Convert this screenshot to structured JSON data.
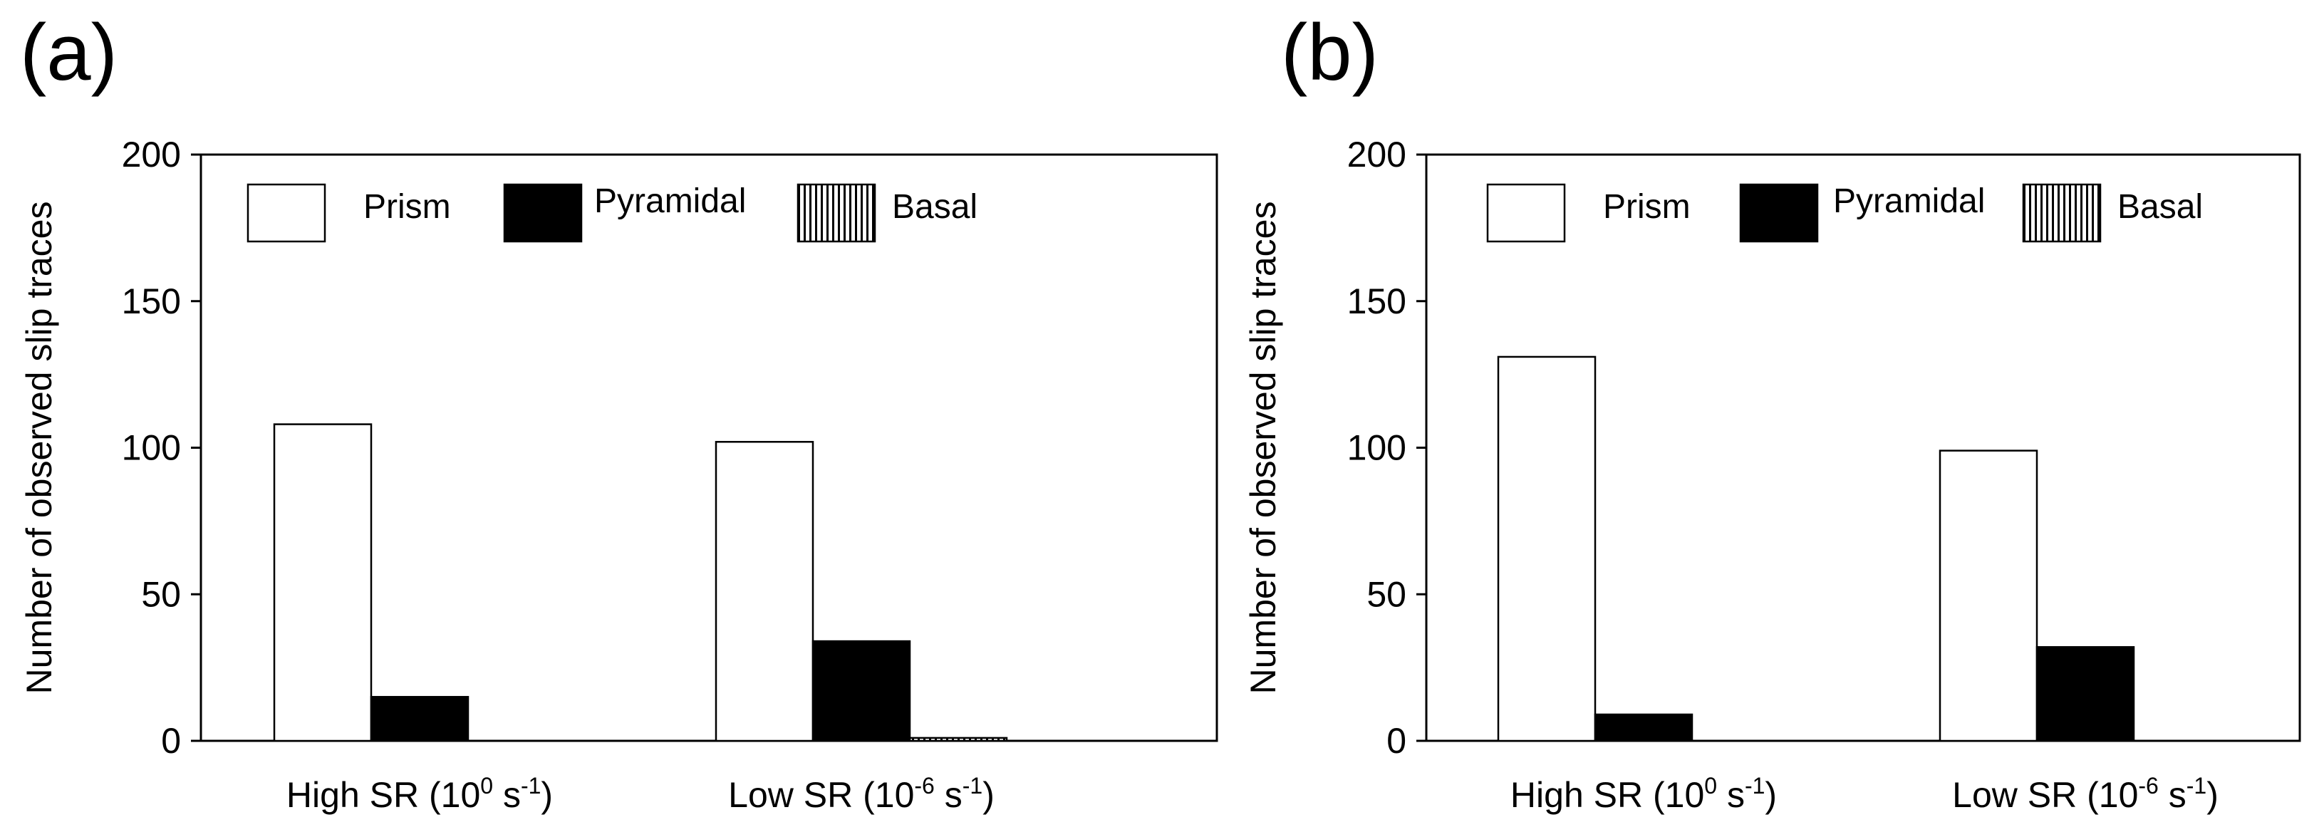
{
  "colors": {
    "axis": "#000000",
    "prism_fill": "#ffffff",
    "pyramidal_fill": "#000000",
    "basal_stripe": "#000000",
    "background": "#ffffff"
  },
  "chart_data": [
    {
      "type": "bar",
      "panel_label": "(a)",
      "title": "",
      "xlabel": "",
      "ylabel": "Number of observed slip traces",
      "ylim": [
        0,
        200
      ],
      "yticks": [
        0,
        50,
        100,
        150,
        200
      ],
      "grid": false,
      "legend_position": "top",
      "categories": [
        {
          "base": "High SR (10",
          "exp": "0",
          "mid": " s",
          "exp2": "-1",
          "end": ")"
        },
        {
          "base": "Low SR (10",
          "exp": "-6",
          "mid": " s",
          "exp2": "-1",
          "end": ")"
        }
      ],
      "series": [
        {
          "name": "Prism",
          "pattern": "white",
          "values": [
            108,
            102
          ]
        },
        {
          "name": "Pyramidal",
          "pattern": "black",
          "values": [
            15,
            34
          ]
        },
        {
          "name": "Basal",
          "pattern": "vertical-stripes",
          "values": [
            0,
            1
          ]
        }
      ]
    },
    {
      "type": "bar",
      "panel_label": "(b)",
      "title": "",
      "xlabel": "",
      "ylabel": "Number of observed slip traces",
      "ylim": [
        0,
        200
      ],
      "yticks": [
        0,
        50,
        100,
        150,
        200
      ],
      "grid": false,
      "legend_position": "top",
      "categories": [
        {
          "base": "High SR (10",
          "exp": "0",
          "mid": " s",
          "exp2": "-1",
          "end": ")"
        },
        {
          "base": "Low SR (10",
          "exp": "-6",
          "mid": " s",
          "exp2": "-1",
          "end": ")"
        }
      ],
      "series": [
        {
          "name": "Prism",
          "pattern": "white",
          "values": [
            131,
            99
          ]
        },
        {
          "name": "Pyramidal",
          "pattern": "black",
          "values": [
            9,
            32
          ]
        },
        {
          "name": "Basal",
          "pattern": "vertical-stripes",
          "values": [
            0,
            0
          ]
        }
      ]
    }
  ]
}
